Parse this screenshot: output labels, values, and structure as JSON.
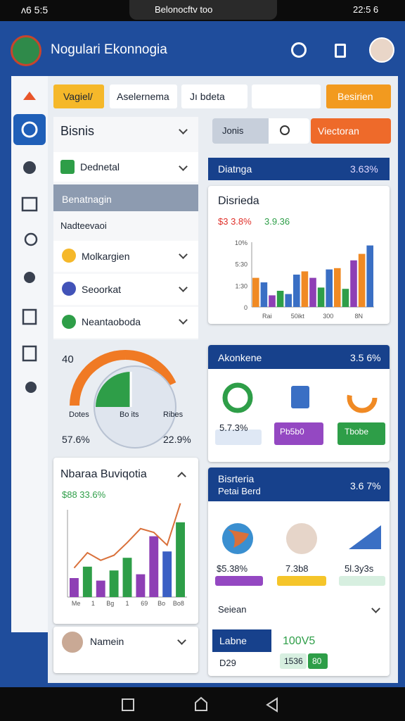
{
  "status_bar": {
    "left": "ᴧ6 5:5",
    "center": "Belonocftv too",
    "right": "22:5 6"
  },
  "header": {
    "title": "Nogulari Ekonnogia"
  },
  "tabs": [
    "Vagiel/",
    "Aselernema",
    "Jı bdeta",
    "Besirien"
  ],
  "sidebar": {
    "title": "Bisnis",
    "items": [
      "Dednetal",
      "Benatnagin",
      "Nadteevaoi",
      "Molkargien",
      "Seoorkat",
      "Neantaoboda"
    ]
  },
  "gauge": {
    "value": "40",
    "labels": [
      "Dotes",
      "Bo its",
      "Ribes"
    ],
    "left": "57.6%",
    "right": "22.9%"
  },
  "trend_card": {
    "title": "Nbaraa Buviqotia",
    "stat": "$88 33.6%",
    "x_labels": [
      "Me",
      "1",
      "Bg",
      "1",
      "69",
      "Bo",
      "Bo8"
    ],
    "ylim": [
      0,
      160
    ],
    "bars": [
      30,
      48,
      26,
      42,
      62,
      36,
      96,
      72,
      118
    ],
    "bar_colors": [
      "#8e3fb5",
      "#2e9e48",
      "#8e3fb5",
      "#2e9e48",
      "#2e9e48",
      "#8e3fb5",
      "#8e3fb5",
      "#3a5fc4",
      "#2e9e48"
    ],
    "line": [
      46,
      70,
      58,
      66,
      86,
      108,
      102,
      82,
      148
    ],
    "line_color": "#d9703a"
  },
  "profile": {
    "name": "Namein"
  },
  "search": {
    "field": "Jonis",
    "button": "Viectoran"
  },
  "summary_bar": {
    "title": "Diatnga",
    "value": "3.63%"
  },
  "bar_card": {
    "title": "Disrieda",
    "stats": [
      "$3 3.8%",
      "3.9.36"
    ],
    "yticks": [
      "10%",
      "5:30",
      "1:30",
      "0"
    ],
    "x_labels": [
      "Rai",
      "50ikt",
      "300",
      "8N"
    ],
    "ylim": [
      0,
      100
    ],
    "values": [
      45,
      38,
      18,
      25,
      20,
      50,
      55,
      45,
      30,
      58,
      60,
      28,
      72,
      82,
      95
    ],
    "colors": [
      "#f08a24",
      "#3a6fc4",
      "#8e3fb5",
      "#2e9e48",
      "#3a6fc4",
      "#3a6fc4",
      "#f08a24",
      "#8e3fb5",
      "#2e9e48",
      "#3a6fc4",
      "#f08a24",
      "#2e9e48",
      "#8e3fb5",
      "#f08a24",
      "#3a6fc4"
    ]
  },
  "donut_card": {
    "title": "Akonkene",
    "value": "3.5 6%",
    "items": [
      "5.7.3%",
      "Pb5b0",
      "Tbobe"
    ]
  },
  "region_card": {
    "title": "Bisrteria",
    "subtitle": "Petai Berd",
    "value": "3.6 7%",
    "items": [
      "$5.38%",
      "7.3b8",
      "5l.3y3s"
    ],
    "filter": "Seiean",
    "footer": {
      "label": "Labne",
      "code": "D29",
      "value": "100V5",
      "badge": "1536",
      "count": "80"
    }
  }
}
